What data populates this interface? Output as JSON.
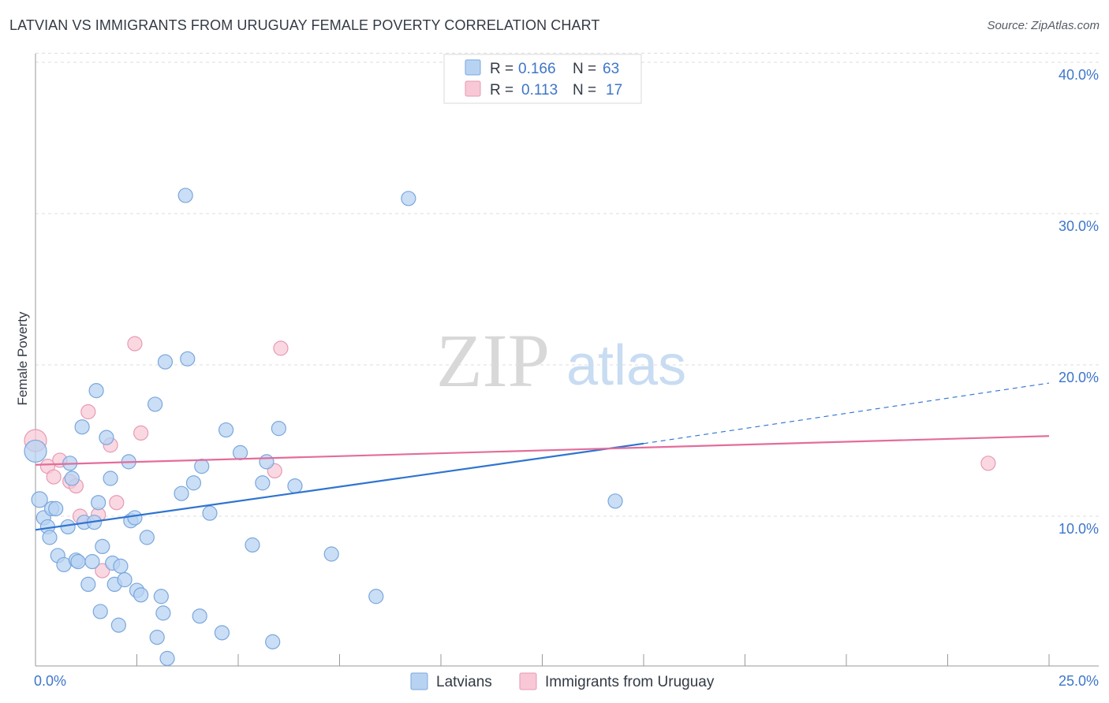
{
  "title": "LATVIAN VS IMMIGRANTS FROM URUGUAY FEMALE POVERTY CORRELATION CHART",
  "source": "Source: ZipAtlas.com",
  "watermark": {
    "zip": "ZIP",
    "atlas": "atlas"
  },
  "colors": {
    "latvians_fill": "#b8d3f2",
    "latvians_stroke": "#7aa7dd",
    "latvians_line": "#2f74d0",
    "uruguay_fill": "#f8c8d6",
    "uruguay_stroke": "#e79ab3",
    "uruguay_line": "#e36d9a",
    "tick_text": "#3e76c9",
    "grid": "#dddddd"
  },
  "legend": {
    "rows": [
      {
        "r_label": "R =",
        "r_value": "0.166",
        "n_label": "N =",
        "n_value": "63"
      },
      {
        "r_label": "R =",
        "r_value": "0.113",
        "n_label": "N =",
        "n_value": "17"
      }
    ]
  },
  "bottom_legend": {
    "latvians": "Latvians",
    "uruguay": "Immigrants from Uruguay"
  },
  "chart_data": {
    "type": "scatter",
    "title": "LATVIAN VS IMMIGRANTS FROM URUGUAY FEMALE POVERTY CORRELATION CHART",
    "xlabel": "",
    "ylabel": "Female Poverty",
    "xlim": [
      0,
      25
    ],
    "ylim": [
      0,
      41
    ],
    "x_tick_labels": [
      {
        "value": 0,
        "label": "0.0%"
      },
      {
        "value": 25,
        "label": "25.0%"
      }
    ],
    "y_tick_labels": [
      {
        "value": 10,
        "label": "10.0%"
      },
      {
        "value": 20,
        "label": "20.0%"
      },
      {
        "value": 30,
        "label": "30.0%"
      },
      {
        "value": 40,
        "label": "40.0%"
      }
    ],
    "series": [
      {
        "name": "Latvians",
        "R": 0.166,
        "N": 63,
        "trend": {
          "x0": 0,
          "y0": 9.1,
          "x1": 15.0,
          "y1": 14.8,
          "dash_x1": 25.0,
          "dash_y1": 18.8
        },
        "points": [
          [
            0.0,
            14.3,
            28
          ],
          [
            0.1,
            11.1,
            20
          ],
          [
            0.2,
            9.9,
            18
          ],
          [
            0.3,
            9.3,
            18
          ],
          [
            0.35,
            8.6,
            18
          ],
          [
            0.4,
            10.5,
            18
          ],
          [
            0.5,
            10.5,
            18
          ],
          [
            0.55,
            7.4,
            18
          ],
          [
            0.7,
            6.8,
            18
          ],
          [
            0.8,
            9.3,
            18
          ],
          [
            0.85,
            13.5,
            18
          ],
          [
            0.9,
            12.5,
            18
          ],
          [
            1.0,
            7.1,
            18
          ],
          [
            1.05,
            7.0,
            18
          ],
          [
            1.15,
            15.9,
            18
          ],
          [
            1.2,
            9.6,
            18
          ],
          [
            1.3,
            5.5,
            18
          ],
          [
            1.4,
            7.0,
            18
          ],
          [
            1.45,
            9.6,
            18
          ],
          [
            1.5,
            18.3,
            18
          ],
          [
            1.55,
            10.9,
            18
          ],
          [
            1.6,
            3.7,
            18
          ],
          [
            1.65,
            8.0,
            18
          ],
          [
            1.75,
            15.2,
            18
          ],
          [
            1.85,
            12.5,
            18
          ],
          [
            1.9,
            6.9,
            18
          ],
          [
            1.95,
            5.5,
            18
          ],
          [
            2.05,
            2.8,
            18
          ],
          [
            2.1,
            6.7,
            18
          ],
          [
            2.2,
            5.8,
            18
          ],
          [
            2.3,
            13.6,
            18
          ],
          [
            2.35,
            9.7,
            18
          ],
          [
            2.45,
            9.9,
            18
          ],
          [
            2.5,
            5.1,
            18
          ],
          [
            2.6,
            4.8,
            18
          ],
          [
            2.75,
            8.6,
            18
          ],
          [
            2.95,
            17.4,
            18
          ],
          [
            3.0,
            2.0,
            18
          ],
          [
            3.1,
            4.7,
            18
          ],
          [
            3.15,
            3.6,
            18
          ],
          [
            3.2,
            20.2,
            18
          ],
          [
            3.25,
            0.6,
            18
          ],
          [
            3.6,
            11.5,
            18
          ],
          [
            3.7,
            31.2,
            18
          ],
          [
            3.75,
            20.4,
            18
          ],
          [
            3.9,
            12.2,
            18
          ],
          [
            4.05,
            3.4,
            18
          ],
          [
            4.1,
            13.3,
            18
          ],
          [
            4.3,
            10.2,
            18
          ],
          [
            4.6,
            2.3,
            18
          ],
          [
            4.7,
            15.7,
            18
          ],
          [
            5.05,
            14.2,
            18
          ],
          [
            5.35,
            8.1,
            18
          ],
          [
            5.6,
            12.2,
            18
          ],
          [
            5.7,
            13.6,
            18
          ],
          [
            5.85,
            1.7,
            18
          ],
          [
            6.0,
            15.8,
            18
          ],
          [
            6.4,
            12.0,
            18
          ],
          [
            7.3,
            7.5,
            18
          ],
          [
            8.4,
            4.7,
            18
          ],
          [
            9.2,
            31.0,
            18
          ],
          [
            14.3,
            11.0,
            18
          ],
          [
            3.55,
            11.3,
            0
          ]
        ]
      },
      {
        "name": "Immigrants from Uruguay",
        "R": 0.113,
        "N": 17,
        "trend": {
          "x0": 0,
          "y0": 13.4,
          "x1": 25.0,
          "y1": 15.3
        },
        "points": [
          [
            0.0,
            15.0,
            28
          ],
          [
            0.3,
            13.3,
            18
          ],
          [
            0.45,
            12.6,
            18
          ],
          [
            0.6,
            13.7,
            18
          ],
          [
            0.85,
            12.3,
            18
          ],
          [
            1.0,
            12.0,
            18
          ],
          [
            1.1,
            10.0,
            18
          ],
          [
            1.3,
            16.9,
            18
          ],
          [
            1.55,
            10.1,
            18
          ],
          [
            1.65,
            6.4,
            18
          ],
          [
            1.85,
            14.7,
            18
          ],
          [
            2.0,
            10.9,
            18
          ],
          [
            2.45,
            21.4,
            18
          ],
          [
            2.6,
            15.5,
            18
          ],
          [
            5.9,
            13.0,
            18
          ],
          [
            6.05,
            21.1,
            18
          ],
          [
            23.5,
            13.5,
            18
          ]
        ]
      }
    ]
  }
}
